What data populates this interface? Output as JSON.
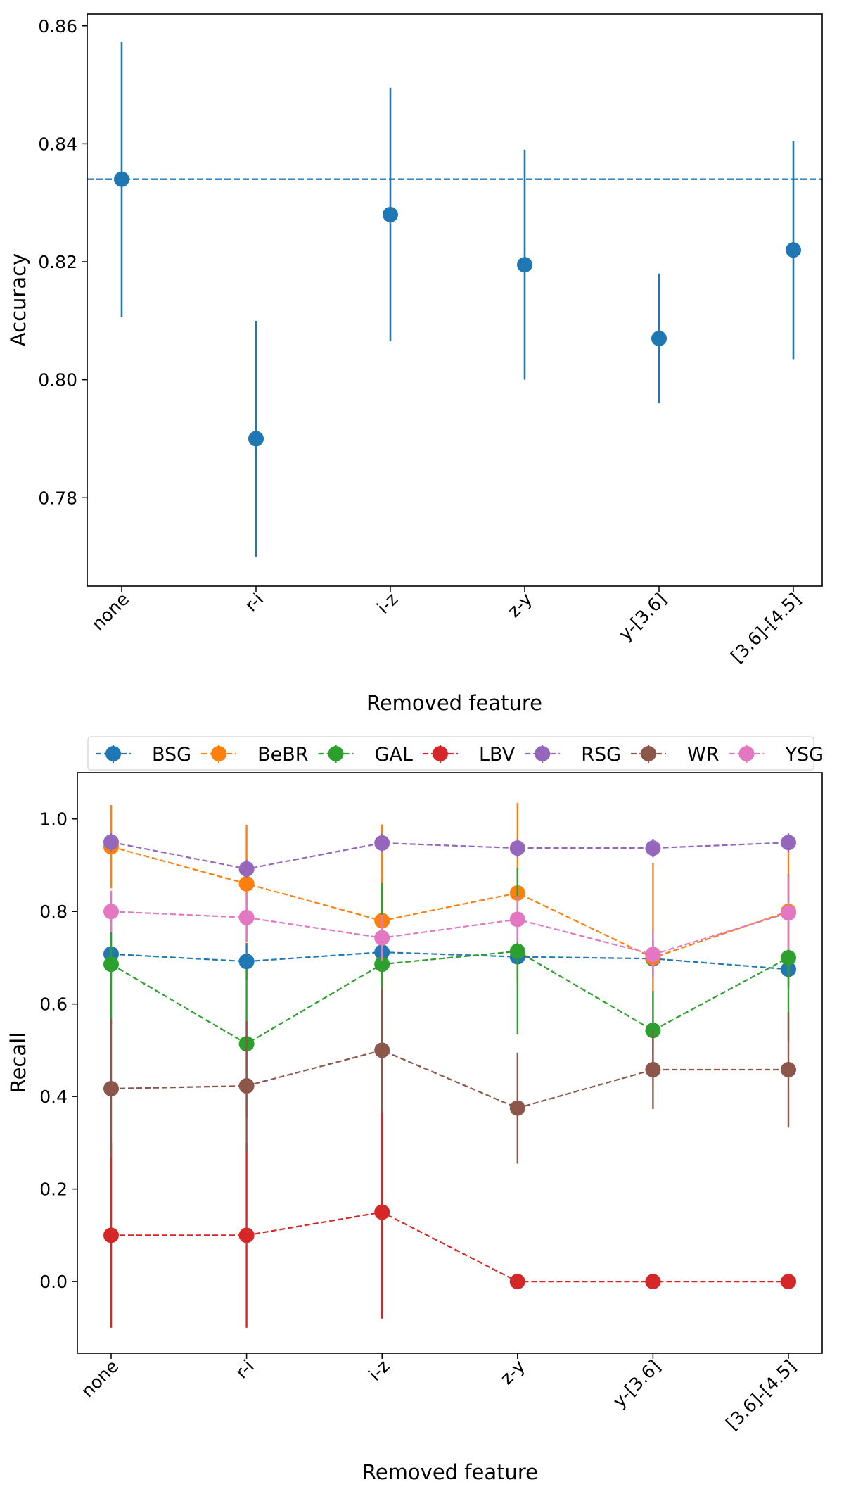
{
  "chart_data": [
    {
      "type": "errorbar",
      "title": "",
      "xlabel": "Removed feature",
      "ylabel": "Accuracy",
      "categories": [
        "none",
        "r-i",
        "i-z",
        "z-y",
        "y-[3.6]",
        "[3.6]-[4.5]"
      ],
      "ylim": [
        0.765,
        0.862
      ],
      "yticks": [
        0.78,
        0.8,
        0.82,
        0.84,
        0.86
      ],
      "ytick_labels": [
        "0.78",
        "0.80",
        "0.82",
        "0.84",
        "0.86"
      ],
      "grid": false,
      "reference_line": {
        "value": 0.834,
        "color": "#1f77b4",
        "style": "dashed"
      },
      "series": [
        {
          "name": "Accuracy",
          "color": "#1f77b4",
          "values": [
            0.834,
            0.79,
            0.828,
            0.8195,
            0.807,
            0.822
          ],
          "errors": [
            0.0233,
            0.02,
            0.0215,
            0.0195,
            0.011,
            0.0185
          ]
        }
      ]
    },
    {
      "type": "line",
      "title": "",
      "xlabel": "Removed feature",
      "ylabel": "Recall",
      "categories": [
        "none",
        "r-i",
        "i-z",
        "z-y",
        "y-[3.6]",
        "[3.6]-[4.5]"
      ],
      "ylim": [
        -0.155,
        1.1
      ],
      "yticks": [
        0.0,
        0.2,
        0.4,
        0.6,
        0.8,
        1.0
      ],
      "ytick_labels": [
        "0.0",
        "0.2",
        "0.4",
        "0.6",
        "0.8",
        "1.0"
      ],
      "grid": false,
      "legend_position": "top",
      "series": [
        {
          "name": "BSG",
          "color": "#1f77b4",
          "values": [
            0.708,
            0.692,
            0.712,
            0.702,
            0.698,
            0.675
          ],
          "errors": [
            0.05,
            0.04,
            0.04,
            0.04,
            0.04,
            0.04
          ]
        },
        {
          "name": "BeBR",
          "color": "#ff7f0e",
          "values": [
            0.94,
            0.86,
            0.78,
            0.84,
            0.7,
            0.8
          ],
          "errors": [
            0.09,
            0.127,
            0.208,
            0.195,
            0.205,
            0.16
          ]
        },
        {
          "name": "GAL",
          "color": "#2ca02c",
          "values": [
            0.686,
            0.514,
            0.686,
            0.714,
            0.543,
            0.7
          ],
          "errors": [
            0.13,
            0.16,
            0.175,
            0.18,
            0.085,
            0.18
          ]
        },
        {
          "name": "LBV",
          "color": "#d62728",
          "values": [
            0.1,
            0.1,
            0.15,
            0.0,
            0.0,
            0.0
          ],
          "errors": [
            0.2,
            0.2,
            0.23,
            0.0,
            0.0,
            0.0
          ]
        },
        {
          "name": "RSG",
          "color": "#9467bd",
          "values": [
            0.95,
            0.892,
            0.948,
            0.937,
            0.937,
            0.949
          ],
          "errors": [
            0.02,
            0.02,
            0.02,
            0.02,
            0.02,
            0.02
          ]
        },
        {
          "name": "WR",
          "color": "#8c564b",
          "values": [
            0.417,
            0.423,
            0.5,
            0.375,
            0.458,
            0.458
          ],
          "errors": [
            0.15,
            0.14,
            0.135,
            0.12,
            0.085,
            0.125
          ]
        },
        {
          "name": "YSG",
          "color": "#e377c2",
          "values": [
            0.8,
            0.787,
            0.743,
            0.783,
            0.707,
            0.797
          ],
          "errors": [
            0.045,
            0.05,
            0.05,
            0.05,
            0.05,
            0.08
          ]
        }
      ]
    }
  ]
}
